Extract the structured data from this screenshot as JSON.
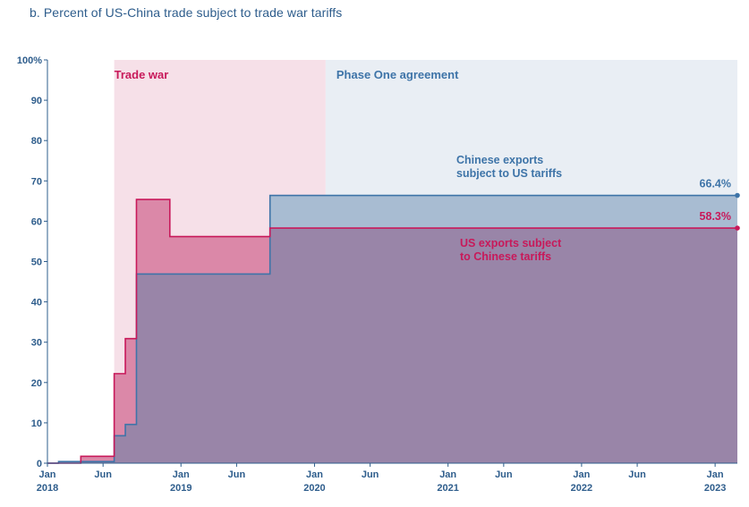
{
  "title": "b. Percent of US-China trade subject to trade war tariffs",
  "colors": {
    "us_tariffs_series": "#3e74a8",
    "china_tariffs_series": "#c8195a",
    "us_tariffs_fill": "#a8bcd2",
    "china_tariffs_fill": "#db88a8",
    "overlap_fill": "#9985a8",
    "trade_war_band": "#f6e0e8",
    "phase_one_band": "#e9eef4",
    "axis_text": "#2e5d8c"
  },
  "chart_data": {
    "type": "area",
    "step": true,
    "ylim": [
      0,
      100
    ],
    "yticks": [
      {
        "value": 0,
        "label": "0"
      },
      {
        "value": 10,
        "label": "10"
      },
      {
        "value": 20,
        "label": "20"
      },
      {
        "value": 30,
        "label": "30"
      },
      {
        "value": 40,
        "label": "40"
      },
      {
        "value": 50,
        "label": "50"
      },
      {
        "value": 60,
        "label": "60"
      },
      {
        "value": 70,
        "label": "70"
      },
      {
        "value": 80,
        "label": "80"
      },
      {
        "value": 90,
        "label": "90"
      },
      {
        "value": 100,
        "label": "100%"
      }
    ],
    "xlim": [
      "2018-01",
      "2023-03"
    ],
    "xticks": [
      {
        "date": "2018-01",
        "line1": "Jan",
        "line2": "2018"
      },
      {
        "date": "2018-06",
        "line1": "Jun",
        "line2": ""
      },
      {
        "date": "2019-01",
        "line1": "Jan",
        "line2": "2019"
      },
      {
        "date": "2019-06",
        "line1": "Jun",
        "line2": ""
      },
      {
        "date": "2020-01",
        "line1": "Jan",
        "line2": "2020"
      },
      {
        "date": "2020-06",
        "line1": "Jun",
        "line2": ""
      },
      {
        "date": "2021-01",
        "line1": "Jan",
        "line2": "2021"
      },
      {
        "date": "2021-06",
        "line1": "Jun",
        "line2": ""
      },
      {
        "date": "2022-01",
        "line1": "Jan",
        "line2": "2022"
      },
      {
        "date": "2022-06",
        "line1": "Jun",
        "line2": ""
      },
      {
        "date": "2023-01",
        "line1": "Jan",
        "line2": "2023"
      }
    ],
    "periods": [
      {
        "label": "Trade war",
        "start": "2018-07",
        "end": "2020-02",
        "color_key": "trade_war_band"
      },
      {
        "label": "Phase One agreement",
        "start": "2020-02",
        "end": "2023-03",
        "color_key": "phase_one_band"
      }
    ],
    "series": [
      {
        "name": "US exports subject to Chinese tariffs",
        "color_key": "china_tariffs_series",
        "fill_key": "china_tariffs_fill",
        "end_label": "58.3%",
        "points": [
          {
            "date": "2018-01",
            "value": 0
          },
          {
            "date": "2018-04",
            "value": 1.7
          },
          {
            "date": "2018-07",
            "value": 22.2
          },
          {
            "date": "2018-08",
            "value": 30.9
          },
          {
            "date": "2018-09",
            "value": 65.4
          },
          {
            "date": "2018-12",
            "value": 56.2
          },
          {
            "date": "2019-09",
            "value": 58.3
          },
          {
            "date": "2023-03",
            "value": 58.3
          }
        ]
      },
      {
        "name": "Chinese exports subject to US tariffs",
        "color_key": "us_tariffs_series",
        "fill_key": "us_tariffs_fill",
        "end_label": "66.4%",
        "points": [
          {
            "date": "2018-01",
            "value": 0
          },
          {
            "date": "2018-02",
            "value": 0.4
          },
          {
            "date": "2018-04",
            "value": 0.4
          },
          {
            "date": "2018-07",
            "value": 6.8
          },
          {
            "date": "2018-08",
            "value": 9.6
          },
          {
            "date": "2018-09",
            "value": 46.9
          },
          {
            "date": "2019-09",
            "value": 66.4
          },
          {
            "date": "2023-03",
            "value": 66.4
          }
        ]
      }
    ],
    "annotations": [
      {
        "text": [
          "Chinese exports",
          "subject to US tariffs"
        ],
        "color_key": "us_tariffs_series"
      },
      {
        "text": [
          "US exports subject",
          "to Chinese tariffs"
        ],
        "color_key": "china_tariffs_series"
      }
    ]
  }
}
